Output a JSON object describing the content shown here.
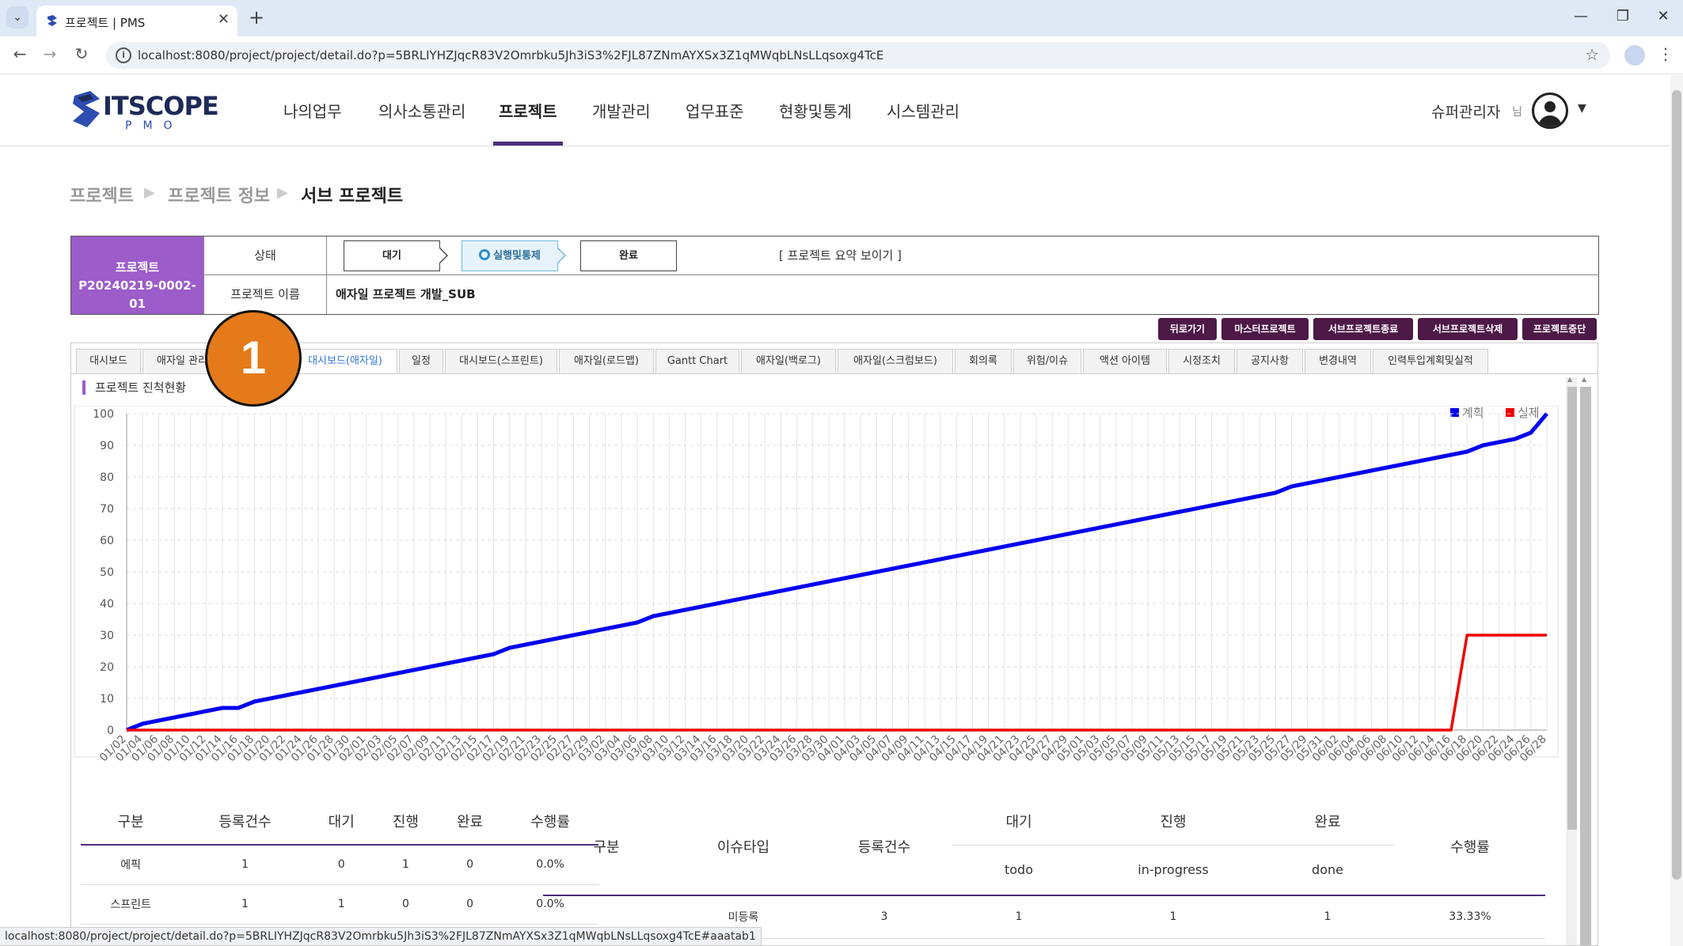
{
  "browser": {
    "tab_title": "프로젝트 | PMS",
    "tab_menu_icon": "chevron-down-icon",
    "new_tab_label": "+",
    "url": "localhost:8080/project/project/detail.do?p=5BRLIYHZJqcR83V2Omrbku5Jh3iS3%2FJL87ZNmAYXSx3Z1qMWqbLNsLLqsoxg4TcE",
    "status_url": "localhost:8080/project/project/detail.do?p=5BRLIYHZJqcR83V2Omrbku5Jh3iS3%2FJL87ZNmAYXSx3Z1qMWqbLNsLLqsoxg4TcE#aaatab1"
  },
  "header": {
    "logo_text": "ITSCOPE",
    "logo_sub": "PMO",
    "menu": [
      "나의업무",
      "의사소통관리",
      "프로젝트",
      "개발관리",
      "업무표준",
      "현황및통계",
      "시스템관리"
    ],
    "active_menu": "프로젝트",
    "user_name": "슈퍼관리자",
    "user_suffix": "님"
  },
  "breadcrumb": [
    "프로젝트",
    "프로젝트 정보",
    "서브 프로젝트"
  ],
  "project": {
    "label": "프로젝트",
    "code": "P20240219-0002-01",
    "status_label": "상태",
    "name_label": "프로젝트 이름",
    "name": "애자일 프로젝트 개발_SUB",
    "steps": [
      "대기",
      "실행및통제",
      "완료"
    ],
    "active_step": "실행및통제",
    "summary_link": "[ 프로젝트 요약 보이기 ]"
  },
  "actions": [
    "뒤로가기",
    "마스터프로젝트",
    "서브프로젝트종료",
    "서브프로젝트삭제",
    "프로젝트중단"
  ],
  "tabs": [
    "대시보드",
    "애자일 관리",
    "대시보드(애자일)",
    "일정",
    "대시보드(스프린트)",
    "애자일(로드맵)",
    "Gantt Chart",
    "애자일(백로그)",
    "애자일(스크럼보드)",
    "회의록",
    "위험/이슈",
    "액션 아이템",
    "시정조치",
    "공지사항",
    "변경내역",
    "인력투입계획및실적"
  ],
  "active_tab": "대시보드(애자일)",
  "section_title": "프로젝트 진척현황",
  "marker_label": "1",
  "chart_data": {
    "type": "line",
    "ylim": [
      0,
      100
    ],
    "yticks": [
      0,
      10,
      20,
      30,
      40,
      50,
      60,
      70,
      80,
      90,
      100
    ],
    "x": [
      "01/02",
      "01/04",
      "01/06",
      "01/08",
      "01/10",
      "01/12",
      "01/14",
      "01/16",
      "01/18",
      "01/20",
      "01/22",
      "01/24",
      "01/26",
      "01/28",
      "01/30",
      "02/01",
      "02/03",
      "02/05",
      "02/07",
      "02/09",
      "02/11",
      "02/13",
      "02/15",
      "02/17",
      "02/19",
      "02/21",
      "02/23",
      "02/25",
      "02/27",
      "02/29",
      "03/02",
      "03/04",
      "03/06",
      "03/08",
      "03/10",
      "03/12",
      "03/14",
      "03/16",
      "03/18",
      "03/20",
      "03/22",
      "03/24",
      "03/26",
      "03/28",
      "03/30",
      "04/01",
      "04/03",
      "04/05",
      "04/07",
      "04/09",
      "04/11",
      "04/13",
      "04/15",
      "04/17",
      "04/19",
      "04/21",
      "04/23",
      "04/25",
      "04/27",
      "04/29",
      "05/01",
      "05/03",
      "05/05",
      "05/07",
      "05/09",
      "05/11",
      "05/13",
      "05/15",
      "05/17",
      "05/19",
      "05/21",
      "05/23",
      "05/25",
      "05/27",
      "05/29",
      "05/31",
      "06/02",
      "06/04",
      "06/06",
      "06/08",
      "06/10",
      "06/12",
      "06/14",
      "06/16",
      "06/18",
      "06/20",
      "06/22",
      "06/24",
      "06/26",
      "06/28"
    ],
    "series": [
      {
        "name": "계획",
        "color": "#0000ee",
        "values": [
          0,
          2,
          3,
          4,
          5,
          6,
          7,
          7,
          9,
          10,
          11,
          12,
          13,
          14,
          15,
          16,
          17,
          18,
          19,
          20,
          21,
          22,
          23,
          24,
          26,
          27,
          28,
          29,
          30,
          31,
          32,
          33,
          34,
          36,
          37,
          38,
          39,
          40,
          41,
          42,
          43,
          44,
          45,
          46,
          47,
          48,
          49,
          50,
          51,
          52,
          53,
          54,
          55,
          56,
          57,
          58,
          59,
          60,
          61,
          62,
          63,
          64,
          65,
          66,
          67,
          68,
          69,
          70,
          71,
          72,
          73,
          74,
          75,
          77,
          78,
          79,
          80,
          81,
          82,
          83,
          84,
          85,
          86,
          87,
          88,
          90,
          91,
          92,
          94,
          100
        ]
      },
      {
        "name": "실제",
        "color": "#ee0000",
        "values": [
          0,
          0,
          0,
          0,
          0,
          0,
          0,
          0,
          0,
          0,
          0,
          0,
          0,
          0,
          0,
          0,
          0,
          0,
          0,
          0,
          0,
          0,
          0,
          0,
          0,
          0,
          0,
          0,
          0,
          0,
          0,
          0,
          0,
          0,
          0,
          0,
          0,
          0,
          0,
          0,
          0,
          0,
          0,
          0,
          0,
          0,
          0,
          0,
          0,
          0,
          0,
          0,
          0,
          0,
          0,
          0,
          0,
          0,
          0,
          0,
          0,
          0,
          0,
          0,
          0,
          0,
          0,
          0,
          0,
          0,
          0,
          0,
          0,
          0,
          0,
          0,
          0,
          0,
          0,
          0,
          0,
          0,
          0,
          0,
          30,
          30,
          30,
          30,
          30,
          30
        ]
      }
    ],
    "legend_position": "top-right",
    "grid": true
  },
  "table1": {
    "headers": [
      "구분",
      "등록건수",
      "대기",
      "진행",
      "완료",
      "수행률"
    ],
    "rows": [
      [
        "에픽",
        "1",
        "0",
        "1",
        "0",
        "0.0%"
      ],
      [
        "스프린트",
        "1",
        "1",
        "0",
        "0",
        "0.0%"
      ]
    ]
  },
  "table2": {
    "headers": [
      "구분",
      "이슈타입",
      "등록건수",
      "대기",
      "진행",
      "완료",
      "수행률"
    ],
    "subheaders": [
      "todo",
      "in-progress",
      "done"
    ],
    "rows": [
      [
        "",
        "미등록",
        "3",
        "1",
        "1",
        "1",
        "33.33%"
      ]
    ]
  }
}
